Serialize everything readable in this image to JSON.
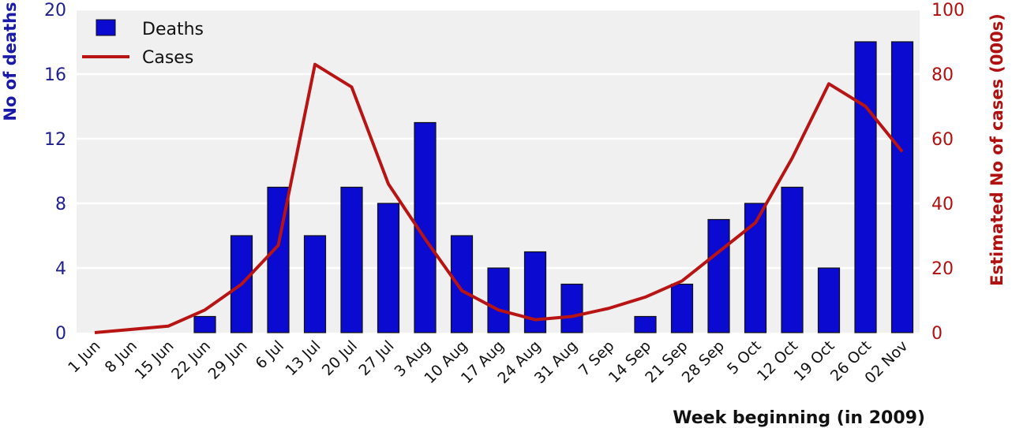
{
  "chart_data": {
    "type": "bar",
    "categories": [
      "1 Jun",
      "8 Jun",
      "15 Jun",
      "22 Jun",
      "29 Jun",
      "6 Jul",
      "13 Jul",
      "20 Jul",
      "27 Jul",
      "3 Aug",
      "10 Aug",
      "17 Aug",
      "24 Aug",
      "31 Aug",
      "7 Sep",
      "14 Sep",
      "21 Sep",
      "28 Sep",
      "5 Oct",
      "12 Oct",
      "19 Oct",
      "26 Oct",
      "02 Nov"
    ],
    "series": [
      {
        "name": "Deaths",
        "type": "bar",
        "axis": "left",
        "color": "#0a0ad0",
        "values": [
          0,
          0,
          0,
          1,
          6,
          9,
          6,
          9,
          8,
          13,
          6,
          4,
          5,
          3,
          0,
          1,
          3,
          7,
          8,
          9,
          4,
          18,
          18
        ]
      },
      {
        "name": "Cases",
        "type": "line",
        "axis": "right",
        "color": "#b81414",
        "values": [
          0,
          1,
          2,
          7,
          15,
          27,
          83,
          76,
          46,
          29,
          13,
          7,
          4,
          5,
          7.5,
          11,
          16,
          25,
          34,
          54,
          77,
          70,
          56
        ]
      }
    ],
    "xlabel": "Week beginning (in 2009)",
    "ylabel": "No of deaths",
    "y2label": "Estimated No of cases (000s)",
    "ylim": [
      0,
      20
    ],
    "y2lim": [
      0,
      100
    ],
    "yticks": [
      0,
      4,
      8,
      12,
      16,
      20
    ],
    "y2ticks": [
      0,
      20,
      40,
      60,
      80,
      100
    ],
    "grid": true,
    "legend_position": "top-left",
    "background_color": "#f0f0f0",
    "left_axis_color": "#1f1f8f",
    "right_axis_color": "#b01010"
  }
}
